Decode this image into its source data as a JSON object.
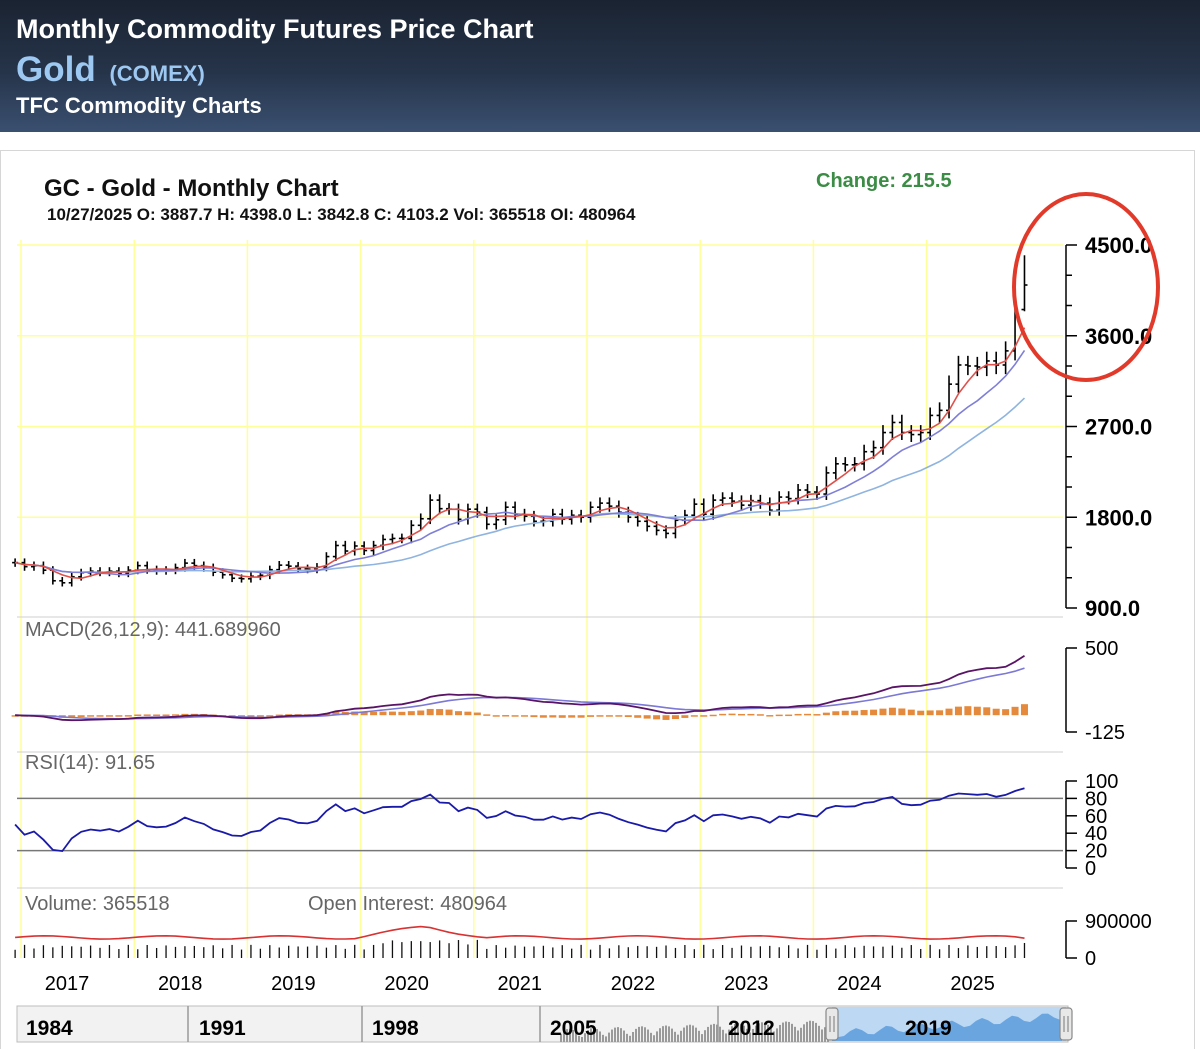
{
  "header": {
    "title": "Monthly Commodity Futures Price Chart",
    "commodity": "Gold",
    "exchange": "(COMEX)",
    "source": "TFC Commodity Charts"
  },
  "chart_header": {
    "title": "GC - Gold - Monthly Chart",
    "info": "10/27/2025 O: 3887.7 H: 4398.0 L: 3842.8 C: 4103.2 Vol: 365518 OI: 480964",
    "change": "Change: 215.5"
  },
  "colors": {
    "grid": "#ffff99",
    "price_bar": "#000000",
    "ma_short": "#e0504a",
    "ma_mid": "#7f7fd8",
    "ma_long": "#8fb4e0",
    "macd_line": "#5a1466",
    "macd_signal": "#7b78d6",
    "macd_hist": "#e58a3d",
    "rsi_line": "#1a1aa8",
    "oi_line": "#d83232",
    "highlight_circle": "#e23a2a"
  },
  "chart_data": [
    {
      "type": "ohlc",
      "title": "GC - Gold - Monthly Chart",
      "x_labels": [
        "2017",
        "2018",
        "2019",
        "2020",
        "2021",
        "2022",
        "2023",
        "2024",
        "2025"
      ],
      "y_ticks": [
        "4500.0",
        "3600.0",
        "2700.0",
        "1800.0",
        "900.0"
      ],
      "ylim": [
        900,
        4500
      ],
      "start": "2016-07",
      "closes": [
        1350,
        1310,
        1320,
        1275,
        1170,
        1150,
        1210,
        1250,
        1265,
        1255,
        1265,
        1245,
        1275,
        1320,
        1280,
        1270,
        1275,
        1300,
        1345,
        1320,
        1300,
        1255,
        1230,
        1195,
        1190,
        1215,
        1225,
        1280,
        1325,
        1315,
        1290,
        1285,
        1305,
        1410,
        1520,
        1465,
        1515,
        1470,
        1520,
        1580,
        1590,
        1590,
        1720,
        1785,
        1970,
        1885,
        1880,
        1780,
        1880,
        1850,
        1730,
        1775,
        1900,
        1830,
        1810,
        1760,
        1760,
        1830,
        1780,
        1820,
        1800,
        1900,
        1940,
        1910,
        1850,
        1800,
        1760,
        1710,
        1670,
        1640,
        1770,
        1820,
        1930,
        1830,
        1970,
        1990,
        1960,
        1920,
        1965,
        1940,
        1870,
        2000,
        1985,
        2070,
        2050,
        2030,
        2240,
        2330,
        2320,
        2330,
        2450,
        2490,
        2640,
        2740,
        2640,
        2620,
        2640,
        2810,
        2860,
        3120,
        3310,
        3300,
        3290,
        3350,
        3310,
        3450,
        3860,
        4103.2
      ]
    },
    {
      "type": "line",
      "title": "MACD(26,12,9): 441.689960",
      "y_ticks": [
        "500",
        "-125"
      ],
      "ylim": [
        -125,
        500
      ],
      "latest_macd": 441.68996
    },
    {
      "type": "line",
      "title": "RSI(14): 91.65",
      "y_ticks": [
        "100",
        "80",
        "60",
        "40",
        "20",
        "0"
      ],
      "ylim": [
        0,
        100
      ],
      "reference_lines": [
        80,
        20
      ],
      "latest_rsi": 91.65
    },
    {
      "type": "bar",
      "volume_label": "Volume: 365518",
      "oi_label": "Open Interest: 480964",
      "y_ticks": [
        "900000",
        "0"
      ],
      "ylim": [
        0,
        900000
      ],
      "latest_volume": 365518,
      "latest_oi": 480964
    }
  ],
  "navigator": {
    "labels": [
      "1984",
      "1991",
      "1998",
      "2005",
      "2012",
      "2019"
    ],
    "handles": [
      "left-handle",
      "right-handle"
    ]
  },
  "annotation": {
    "shape": "circle",
    "meaning": "highlights recent price surge"
  }
}
